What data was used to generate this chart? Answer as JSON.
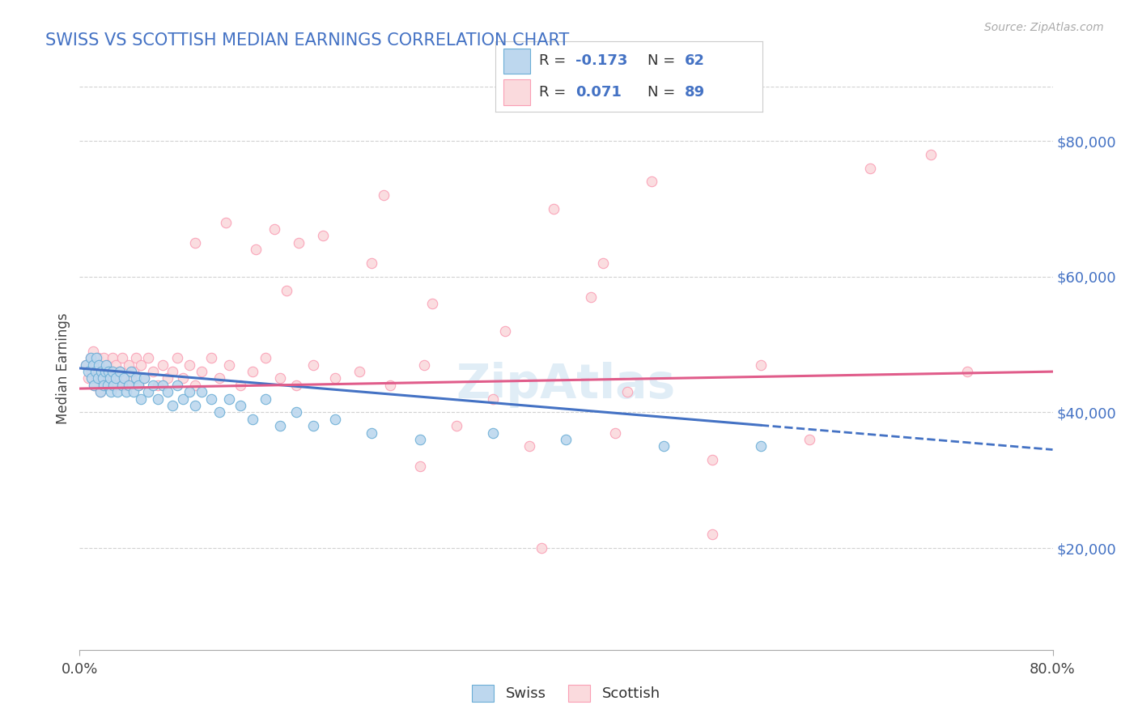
{
  "title": "SWISS VS SCOTTISH MEDIAN EARNINGS CORRELATION CHART",
  "source_text": "Source: ZipAtlas.com",
  "ylabel": "Median Earnings",
  "xlim": [
    0.0,
    0.8
  ],
  "ylim": [
    5000,
    88000
  ],
  "yticks": [
    20000,
    40000,
    60000,
    80000
  ],
  "ytick_labels": [
    "$20,000",
    "$40,000",
    "$60,000",
    "$80,000"
  ],
  "xtick_labels": [
    "0.0%",
    "80.0%"
  ],
  "swiss_face": "#bdd7ee",
  "swiss_edge": "#6baed6",
  "scottish_face": "#fadadd",
  "scottish_edge": "#fa9fb5",
  "trend_swiss_color": "#4472c4",
  "trend_scottish_color": "#e05c8a",
  "bg_color": "#ffffff",
  "grid_color": "#cccccc",
  "title_color": "#4472c4",
  "watermark_color": "#c8dff0",
  "swiss_x": [
    0.005,
    0.007,
    0.009,
    0.01,
    0.011,
    0.012,
    0.013,
    0.014,
    0.015,
    0.016,
    0.017,
    0.018,
    0.019,
    0.02,
    0.021,
    0.022,
    0.023,
    0.024,
    0.025,
    0.026,
    0.027,
    0.028,
    0.03,
    0.031,
    0.033,
    0.035,
    0.036,
    0.038,
    0.04,
    0.042,
    0.044,
    0.046,
    0.048,
    0.05,
    0.053,
    0.056,
    0.06,
    0.064,
    0.068,
    0.072,
    0.076,
    0.08,
    0.085,
    0.09,
    0.095,
    0.1,
    0.108,
    0.115,
    0.123,
    0.132,
    0.142,
    0.153,
    0.165,
    0.178,
    0.192,
    0.21,
    0.24,
    0.28,
    0.34,
    0.4,
    0.48,
    0.56
  ],
  "swiss_y": [
    47000,
    46000,
    48000,
    45000,
    47000,
    44000,
    46000,
    48000,
    45000,
    47000,
    43000,
    46000,
    45000,
    44000,
    46000,
    47000,
    44000,
    46000,
    45000,
    43000,
    46000,
    44000,
    45000,
    43000,
    46000,
    44000,
    45000,
    43000,
    44000,
    46000,
    43000,
    45000,
    44000,
    42000,
    45000,
    43000,
    44000,
    42000,
    44000,
    43000,
    41000,
    44000,
    42000,
    43000,
    41000,
    43000,
    42000,
    40000,
    42000,
    41000,
    39000,
    42000,
    38000,
    40000,
    38000,
    39000,
    37000,
    36000,
    37000,
    36000,
    35000,
    35000
  ],
  "scottish_x": [
    0.005,
    0.007,
    0.009,
    0.01,
    0.011,
    0.012,
    0.013,
    0.014,
    0.015,
    0.016,
    0.017,
    0.018,
    0.019,
    0.02,
    0.021,
    0.022,
    0.023,
    0.024,
    0.025,
    0.026,
    0.027,
    0.028,
    0.03,
    0.031,
    0.033,
    0.035,
    0.036,
    0.038,
    0.04,
    0.042,
    0.044,
    0.046,
    0.048,
    0.05,
    0.053,
    0.056,
    0.06,
    0.064,
    0.068,
    0.072,
    0.076,
    0.08,
    0.085,
    0.09,
    0.095,
    0.1,
    0.108,
    0.115,
    0.123,
    0.132,
    0.142,
    0.153,
    0.165,
    0.178,
    0.192,
    0.21,
    0.23,
    0.255,
    0.283,
    0.095,
    0.12,
    0.145,
    0.17,
    0.2,
    0.24,
    0.29,
    0.35,
    0.42,
    0.31,
    0.37,
    0.44,
    0.52,
    0.6,
    0.38,
    0.28,
    0.45,
    0.18,
    0.52,
    0.65,
    0.43,
    0.34,
    0.56,
    0.7,
    0.25,
    0.16,
    0.39,
    0.47,
    0.73
  ],
  "scottish_y": [
    47000,
    45000,
    48000,
    46000,
    49000,
    44000,
    47000,
    45000,
    48000,
    46000,
    43000,
    47000,
    45000,
    48000,
    46000,
    44000,
    47000,
    45000,
    46000,
    44000,
    48000,
    45000,
    47000,
    44000,
    46000,
    48000,
    45000,
    44000,
    47000,
    45000,
    46000,
    48000,
    44000,
    47000,
    45000,
    48000,
    46000,
    44000,
    47000,
    45000,
    46000,
    48000,
    45000,
    47000,
    44000,
    46000,
    48000,
    45000,
    47000,
    44000,
    46000,
    48000,
    45000,
    44000,
    47000,
    45000,
    46000,
    44000,
    47000,
    65000,
    68000,
    64000,
    58000,
    66000,
    62000,
    56000,
    52000,
    57000,
    38000,
    35000,
    37000,
    33000,
    36000,
    20000,
    32000,
    43000,
    65000,
    22000,
    76000,
    62000,
    42000,
    47000,
    78000,
    72000,
    67000,
    70000,
    74000,
    46000
  ]
}
